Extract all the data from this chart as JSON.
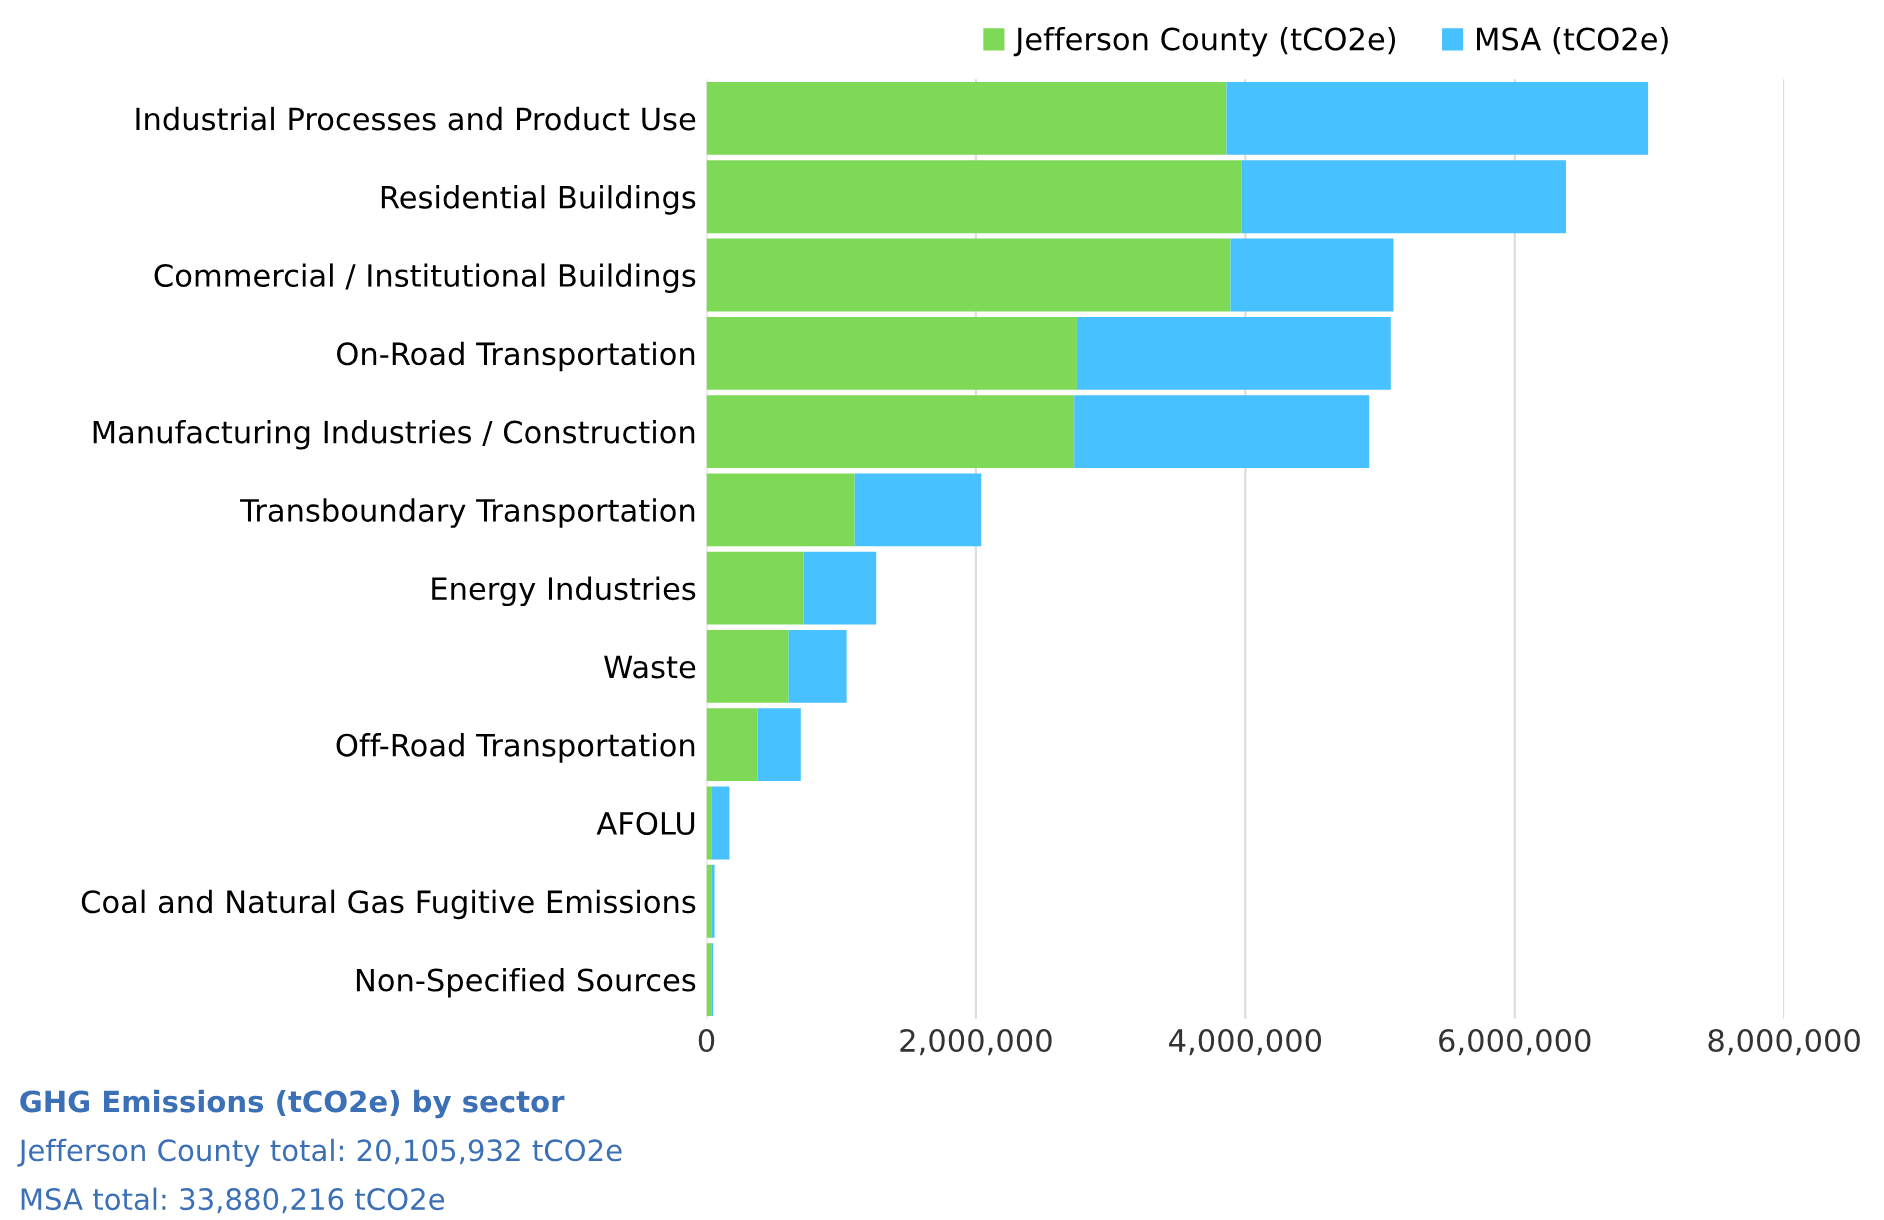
{
  "chart_data": {
    "type": "bar",
    "orientation": "horizontal",
    "stacked": true,
    "categories": [
      "Industrial Processes and Product Use",
      "Residential Buildings",
      "Commercial / Institutional Buildings",
      "On-Road Transportation",
      "Manufacturing Industries / Construction",
      "Transboundary Transportation",
      "Energy Industries",
      "Waste",
      "Off-Road Transportation",
      "AFOLU",
      "Coal and Natural Gas Fugitive Emissions",
      "Non-Specified Sources"
    ],
    "series": [
      {
        "name": "Jefferson County (tCO2e)",
        "color": "#7ed957",
        "values": [
          3860000,
          3970000,
          3890000,
          2750000,
          2730000,
          1100000,
          720000,
          610000,
          380000,
          40000,
          40000,
          40000
        ]
      },
      {
        "name": "MSA (tCO2e)",
        "color": "#47c1ff",
        "values": [
          3130000,
          2410000,
          1210000,
          2330000,
          2190000,
          940000,
          540000,
          430000,
          320000,
          130000,
          20000,
          10000
        ]
      }
    ],
    "xlim": [
      0,
      8000000
    ],
    "xticks": [
      {
        "value": 0,
        "label": "0"
      },
      {
        "value": 2000000,
        "label": "2,000,000"
      },
      {
        "value": 4000000,
        "label": "4,000,000"
      },
      {
        "value": 6000000,
        "label": "6,000,000"
      },
      {
        "value": 8000000,
        "label": "8,000,000"
      }
    ],
    "grid": "x",
    "legend": "top right",
    "annotations": [
      "GHG Emissions (tCO2e) by sector",
      "Jefferson County total: 20,105,932 tCO2e",
      "MSA total: 33,880,216 tCO2e"
    ]
  }
}
